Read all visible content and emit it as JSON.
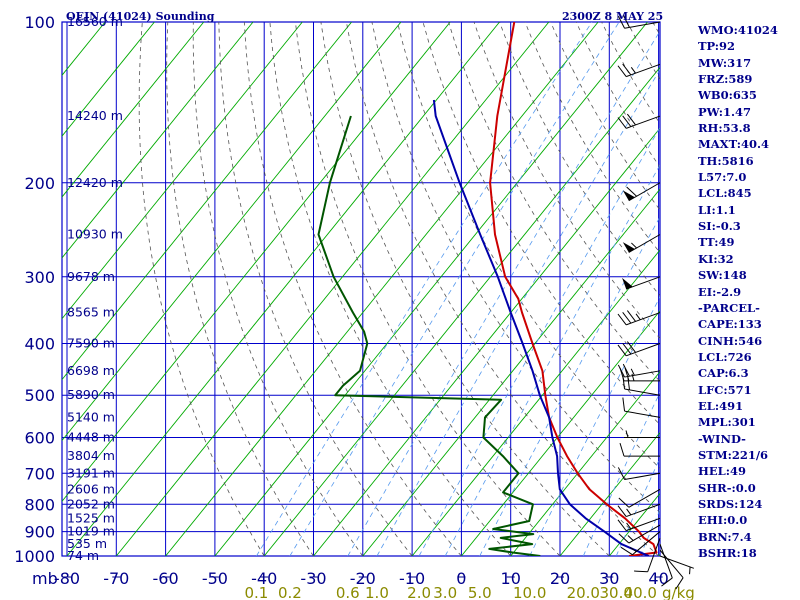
{
  "header": {
    "station": "OEJN (41024) Sounding",
    "valid_time": "2300Z  8 MAY 25"
  },
  "indices": [
    "WMO:41024",
    "TP:92",
    "MW:317",
    "FRZ:589",
    "WB0:635",
    "PW:1.47",
    "RH:53.8",
    "MAXT:40.4",
    "TH:5816",
    "L57:7.0",
    "LCL:845",
    "LI:1.1",
    "SI:-0.3",
    "TT:49",
    "KI:32",
    "SW:148",
    "EI:-2.9",
    "-PARCEL-",
    "CAPE:133",
    "CINH:546",
    "LCL:726",
    "CAP:6.3",
    "LFC:571",
    "EL:491",
    "MPL:301",
    "-WIND-",
    "STM:221/6",
    "HEL:49",
    "SHR-:0.0",
    "SRDS:124",
    "EHI:0.0",
    "BRN:7.4",
    "BSHR:18"
  ],
  "colors": {
    "grid": "#0000cc",
    "isotherm": "#0000cc",
    "dry_adiabat": "#00aa00",
    "moist_adiabat": "#555555",
    "mixing_ratio": "#5599ee",
    "temperature": "#cc0000",
    "dewpoint": "#005500",
    "parcel": "#0000aa",
    "wind": "#000000",
    "labels": "#00008b",
    "mixing_labels": "#8b8b00"
  },
  "chart_data": {
    "type": "line",
    "title": "OEJN (41024) Sounding",
    "xlabel": "",
    "ylabel": "mb",
    "pressure_ticks": [
      100,
      200,
      300,
      400,
      500,
      600,
      700,
      800,
      900,
      1000
    ],
    "pressure_range": [
      100,
      1000
    ],
    "temperature_ticks": [
      -80,
      -70,
      -60,
      -50,
      -40,
      -30,
      -20,
      -10,
      0,
      10,
      20,
      30,
      40
    ],
    "temperature_range": [
      -80,
      40
    ],
    "mixing_ratio_labels": [
      "0.1",
      "0.2",
      "0.6",
      "1.0",
      "2.0",
      "3.0",
      "5.0",
      "10.0",
      "20.0",
      "30.0",
      "40.0"
    ],
    "mixing_ratio_values": [
      0.1,
      0.2,
      0.6,
      1.0,
      2.0,
      3.0,
      5.0,
      10.0,
      20.0,
      30.0,
      40.0
    ],
    "mixing_unit": "g/kg",
    "height_labels": [
      {
        "p": 100,
        "text": "16560 m"
      },
      {
        "p": 150,
        "text": "14240 m"
      },
      {
        "p": 200,
        "text": "12420 m"
      },
      {
        "p": 250,
        "text": "10930 m"
      },
      {
        "p": 300,
        "text": "9678 m"
      },
      {
        "p": 350,
        "text": "8565 m"
      },
      {
        "p": 400,
        "text": "7590 m"
      },
      {
        "p": 450,
        "text": "6698 m"
      },
      {
        "p": 500,
        "text": "5890 m"
      },
      {
        "p": 550,
        "text": "5140 m"
      },
      {
        "p": 600,
        "text": "4448 m"
      },
      {
        "p": 650,
        "text": "3804 m"
      },
      {
        "p": 700,
        "text": "3191 m"
      },
      {
        "p": 750,
        "text": "2606 m"
      },
      {
        "p": 800,
        "text": "2052 m"
      },
      {
        "p": 850,
        "text": "1525 m"
      },
      {
        "p": 900,
        "text": "1019 m"
      },
      {
        "p": 950,
        "text": "535 m"
      },
      {
        "p": 1000,
        "text": "74 m"
      }
    ],
    "series": [
      {
        "name": "temperature",
        "points": [
          {
            "p": 1000,
            "t": 34
          },
          {
            "p": 985,
            "t": 39
          },
          {
            "p": 950,
            "t": 37
          },
          {
            "p": 925,
            "t": 34
          },
          {
            "p": 900,
            "t": 32
          },
          {
            "p": 850,
            "t": 27
          },
          {
            "p": 800,
            "t": 21
          },
          {
            "p": 750,
            "t": 15
          },
          {
            "p": 700,
            "t": 10
          },
          {
            "p": 650,
            "t": 5
          },
          {
            "p": 600,
            "t": 0
          },
          {
            "p": 550,
            "t": -5
          },
          {
            "p": 500,
            "t": -9.4
          },
          {
            "p": 450,
            "t": -14
          },
          {
            "p": 400,
            "t": -20.5
          },
          {
            "p": 350,
            "t": -27.7
          },
          {
            "p": 330,
            "t": -30.7
          },
          {
            "p": 300,
            "t": -37
          },
          {
            "p": 250,
            "t": -46
          },
          {
            "p": 200,
            "t": -55.5
          },
          {
            "p": 150,
            "t": -65
          },
          {
            "p": 100,
            "t": -77
          }
        ]
      },
      {
        "name": "dewpoint",
        "points": [
          {
            "p": 1000,
            "t": 16
          },
          {
            "p": 985,
            "t": 9.8
          },
          {
            "p": 970,
            "t": 4.5
          },
          {
            "p": 950,
            "t": 12.4
          },
          {
            "p": 925,
            "t": 5
          },
          {
            "p": 910,
            "t": 11
          },
          {
            "p": 890,
            "t": 2
          },
          {
            "p": 860,
            "t": 8
          },
          {
            "p": 800,
            "t": 6
          },
          {
            "p": 760,
            "t": -2
          },
          {
            "p": 700,
            "t": -2
          },
          {
            "p": 650,
            "t": -8
          },
          {
            "p": 600,
            "t": -15
          },
          {
            "p": 550,
            "t": -18
          },
          {
            "p": 510,
            "t": -17.6
          },
          {
            "p": 500,
            "t": -52
          },
          {
            "p": 480,
            "t": -52
          },
          {
            "p": 450,
            "t": -51
          },
          {
            "p": 400,
            "t": -54
          },
          {
            "p": 380,
            "t": -56.6
          },
          {
            "p": 350,
            "t": -62
          },
          {
            "p": 300,
            "t": -71.8
          },
          {
            "p": 250,
            "t": -81.8
          },
          {
            "p": 200,
            "t": -88
          },
          {
            "p": 150,
            "t": -94.7
          }
        ]
      },
      {
        "name": "parcel",
        "points": [
          {
            "p": 1000,
            "t": 38
          },
          {
            "p": 950,
            "t": 30.5
          },
          {
            "p": 900,
            "t": 25
          },
          {
            "p": 850,
            "t": 19
          },
          {
            "p": 800,
            "t": 13.5
          },
          {
            "p": 750,
            "t": 9
          },
          {
            "p": 700,
            "t": 6
          },
          {
            "p": 650,
            "t": 3
          },
          {
            "p": 600,
            "t": -1
          },
          {
            "p": 550,
            "t": -5
          },
          {
            "p": 500,
            "t": -10.5
          },
          {
            "p": 450,
            "t": -16
          },
          {
            "p": 400,
            "t": -22.5
          },
          {
            "p": 350,
            "t": -30
          },
          {
            "p": 300,
            "t": -38.5
          },
          {
            "p": 250,
            "t": -49
          },
          {
            "p": 200,
            "t": -61.7
          },
          {
            "p": 150,
            "t": -77.5
          },
          {
            "p": 140,
            "t": -80.5
          }
        ]
      }
    ],
    "wind_barbs": [
      {
        "p": 1000,
        "dir": 110,
        "spd": 5
      },
      {
        "p": 975,
        "dir": 140,
        "spd": 10
      },
      {
        "p": 950,
        "dir": 160,
        "spd": 10
      },
      {
        "p": 925,
        "dir": 200,
        "spd": 10
      },
      {
        "p": 900,
        "dir": 230,
        "spd": 15
      },
      {
        "p": 875,
        "dir": 240,
        "spd": 15
      },
      {
        "p": 850,
        "dir": 250,
        "spd": 15
      },
      {
        "p": 800,
        "dir": 250,
        "spd": 15
      },
      {
        "p": 750,
        "dir": 240,
        "spd": 10
      },
      {
        "p": 700,
        "dir": 260,
        "spd": 10
      },
      {
        "p": 650,
        "dir": 270,
        "spd": 10
      },
      {
        "p": 600,
        "dir": 270,
        "spd": 5
      },
      {
        "p": 550,
        "dir": 280,
        "spd": 10
      },
      {
        "p": 500,
        "dir": 280,
        "spd": 20
      },
      {
        "p": 470,
        "dir": 270,
        "spd": 25
      },
      {
        "p": 450,
        "dir": 260,
        "spd": 25
      },
      {
        "p": 400,
        "dir": 250,
        "spd": 30
      },
      {
        "p": 350,
        "dir": 250,
        "spd": 35
      },
      {
        "p": 300,
        "dir": 250,
        "spd": 50
      },
      {
        "p": 250,
        "dir": 240,
        "spd": 55
      },
      {
        "p": 200,
        "dir": 240,
        "spd": 60
      },
      {
        "p": 150,
        "dir": 250,
        "spd": 30
      },
      {
        "p": 120,
        "dir": 250,
        "spd": 25
      },
      {
        "p": 100,
        "dir": 260,
        "spd": 20
      }
    ]
  }
}
